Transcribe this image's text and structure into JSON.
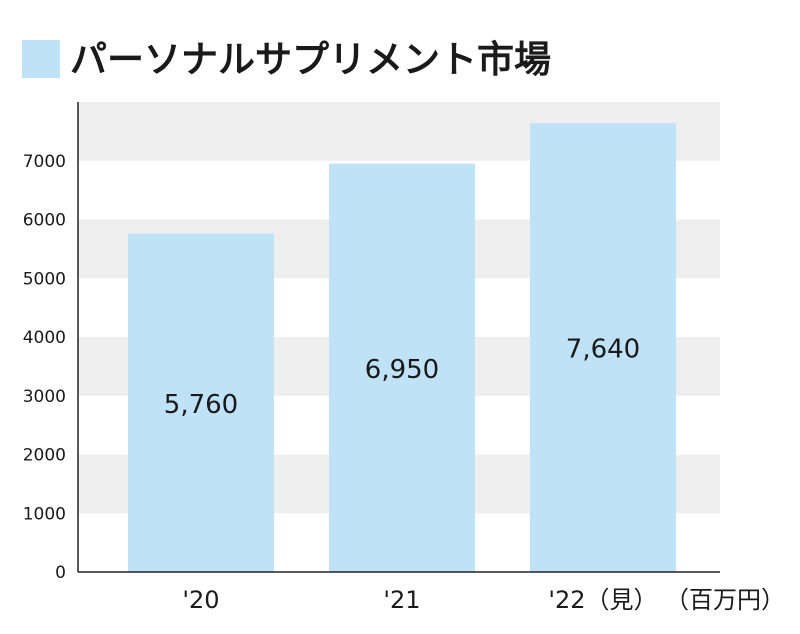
{
  "colors": {
    "bar": "#bfe2f7",
    "band": "#eeeeee",
    "axis": "#222222",
    "text": "#1a1a1a",
    "legend_square": "#bfe2f7"
  },
  "chart_data": {
    "type": "bar",
    "title": "パーソナルサプリメント市場",
    "unit_label": "（百万円）",
    "categories": [
      "'20",
      "'21",
      "'22（見）"
    ],
    "values": [
      5760,
      6950,
      7640
    ],
    "data_labels": [
      "5,760",
      "6,950",
      "7,640"
    ],
    "ylim": [
      0,
      8000
    ],
    "yticks": [
      0,
      1000,
      2000,
      3000,
      4000,
      5000,
      6000,
      7000
    ],
    "grid": "alternating horizontal bands",
    "legend": "none"
  }
}
